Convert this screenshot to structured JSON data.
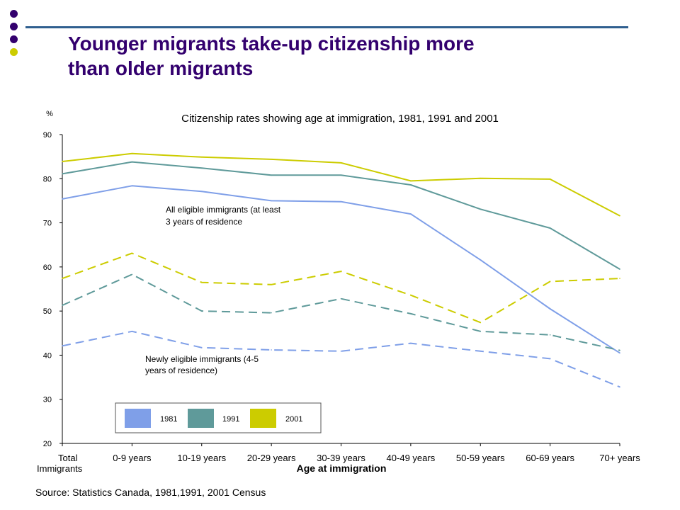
{
  "slide": {
    "title_line1": "Younger migrants take-up citizenship more",
    "title_line2": "than older migrants",
    "source": "Source: Statistics Canada, 1981,1991, 2001 Census",
    "bullet_colors": [
      "#33006e",
      "#33006e",
      "#33006e",
      "#cccc00"
    ],
    "rule_color": "#2f5f8f",
    "title_color": "#33006e"
  },
  "chart_data": {
    "type": "line",
    "title": "Citizenship rates showing age at immigration, 1981, 1991 and 2001",
    "ylabel": "%",
    "xlabel": "Age at immigration",
    "ylim": [
      20,
      90
    ],
    "yticks": [
      20,
      30,
      40,
      50,
      60,
      70,
      80,
      90
    ],
    "categories": [
      "Total Immigrants",
      "0-9 years",
      "10-19 years",
      "20-29 years",
      "30-39 years",
      "40-49 years",
      "50-59 years",
      "60-69 years",
      "70+ years"
    ],
    "grid": false,
    "legend_position": "bottom-left",
    "legend": [
      {
        "label": "1981",
        "color": "#7f9fe8"
      },
      {
        "label": "1991",
        "color": "#5f9a9a"
      },
      {
        "label": "2001",
        "color": "#cccc00"
      }
    ],
    "annotations": [
      {
        "text_lines": [
          "All eligible immigrants (at least",
          "3 years of residence"
        ]
      },
      {
        "text_lines": [
          "Newly eligible immigrants (4-5",
          "years of residence)"
        ]
      }
    ],
    "series": [
      {
        "year": "1981",
        "group": "all_eligible",
        "color": "#7f9fe8",
        "style": "solid",
        "values": [
          75.4,
          78.4,
          77.1,
          75.0,
          74.8,
          72.0,
          61.6,
          50.5,
          40.5
        ]
      },
      {
        "year": "1991",
        "group": "all_eligible",
        "color": "#5f9a9a",
        "style": "solid",
        "values": [
          81.1,
          83.8,
          82.4,
          80.8,
          80.8,
          78.6,
          73.1,
          68.8,
          59.5
        ]
      },
      {
        "year": "2001",
        "group": "all_eligible",
        "color": "#cccc00",
        "style": "solid",
        "values": [
          83.9,
          85.7,
          84.9,
          84.4,
          83.6,
          79.5,
          80.1,
          79.9,
          71.6
        ]
      },
      {
        "year": "1981",
        "group": "newly_eligible",
        "color": "#7f9fe8",
        "style": "dashed",
        "values": [
          42.1,
          45.4,
          41.7,
          41.2,
          40.9,
          42.7,
          40.9,
          39.2,
          32.8
        ]
      },
      {
        "year": "1991",
        "group": "newly_eligible",
        "color": "#5f9a9a",
        "style": "dashed",
        "values": [
          51.3,
          58.3,
          50.0,
          49.6,
          52.8,
          49.4,
          45.4,
          44.6,
          41.1
        ]
      },
      {
        "year": "2001",
        "group": "newly_eligible",
        "color": "#cccc00",
        "style": "dashed",
        "values": [
          57.4,
          63.1,
          56.5,
          56.0,
          59.0,
          53.6,
          47.4,
          56.7,
          57.4
        ]
      }
    ]
  }
}
